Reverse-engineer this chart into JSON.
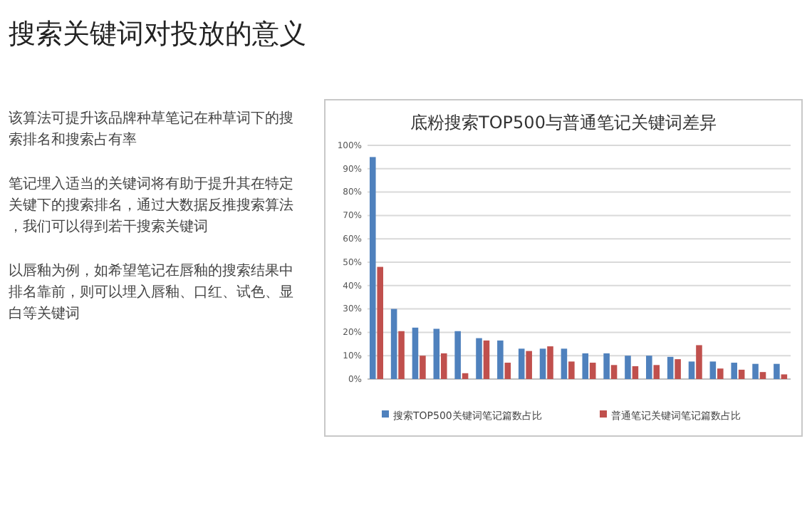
{
  "chart_data": {
    "type": "bar",
    "title": "底粉搜索TOP500与普通笔记关键词差异",
    "annotations": [
      "搜索关键词对投放的意义",
      "该算法可提升该品牌种草笔记在种草词下的搜索排名和搜索占有率",
      "笔记埋入适当的关键词将有助于提升其在特定关键下的搜索排名，通过大数据反推搜索算法，我们可以得到若干搜索关键词",
      "以唇釉为例，如希望笔记在唇釉的搜索结果中排名靠前，则可以埋入唇釉、口红、试色、显白等关键词"
    ],
    "categories": [
      null,
      null,
      null,
      null,
      null,
      null,
      null,
      null,
      null,
      null,
      null,
      null,
      null,
      null,
      null,
      null,
      null,
      null,
      null,
      null
    ],
    "series": [
      {
        "name": "搜索TOP500关键词笔记篇数占比",
        "color": "#4f81bd",
        "values": [
          95,
          30,
          22,
          21.5,
          20.5,
          17.5,
          16.5,
          13,
          13,
          13,
          11,
          11,
          10,
          10,
          9.5,
          7.5,
          7.5,
          7,
          6.5,
          6.5
        ]
      },
      {
        "name": "普通笔记关键词笔记篇数占比",
        "color": "#c0504d",
        "values": [
          48,
          20.5,
          10,
          11,
          2.5,
          16.5,
          7,
          12,
          14,
          7.5,
          7,
          6,
          5.5,
          6,
          8.5,
          14.5,
          4.5,
          4,
          3,
          2
        ]
      }
    ],
    "ylim": [
      0,
      100
    ],
    "yticks": [
      {
        "value": 0,
        "label": "0%"
      },
      {
        "value": 10,
        "label": "10%"
      },
      {
        "value": 20,
        "label": "20%"
      },
      {
        "value": 30,
        "label": "30%"
      },
      {
        "value": 40,
        "label": "40%"
      },
      {
        "value": 50,
        "label": "50%"
      },
      {
        "value": 60,
        "label": "60%"
      },
      {
        "value": 70,
        "label": "70%"
      },
      {
        "value": 80,
        "label": "80%"
      },
      {
        "value": 90,
        "label": "90%"
      },
      {
        "value": 100,
        "label": "100%"
      }
    ],
    "grid": "y",
    "legend": "bottom"
  }
}
